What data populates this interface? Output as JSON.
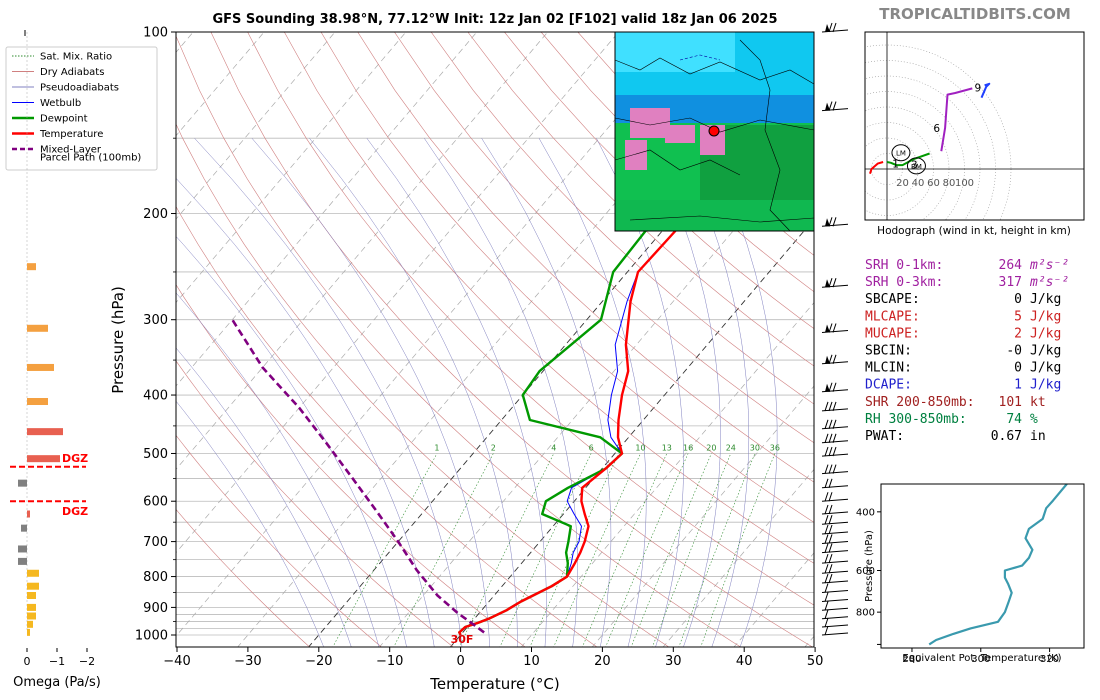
{
  "title": "GFS Sounding 38.98°N, 77.12°W Init: 12z Jan 02 [F102] valid 18z Jan 06 2025",
  "watermark": "TROPICALTIDBITS.COM",
  "skewt": {
    "xlabel": "Temperature (°C)",
    "ylabel": "Pressure (hPa)",
    "x_ticks": [
      -40,
      -30,
      -20,
      -10,
      0,
      10,
      20,
      30,
      40,
      50
    ],
    "y_ticks": [
      100,
      200,
      300,
      400,
      500,
      600,
      700,
      800,
      900,
      1000
    ],
    "freezing_label": "30F",
    "mixing_ratio_labels": [
      "1",
      "2",
      "4",
      "6",
      "8",
      "10",
      "13",
      "16",
      "20",
      "24",
      "30",
      "36"
    ]
  },
  "legend": [
    {
      "label": "Sat. Mix. Ratio",
      "color": "#2e8b2e",
      "style": "dotted"
    },
    {
      "label": "Dry Adiabats",
      "color": "#d08080",
      "style": "solid"
    },
    {
      "label": "Pseudoadiabats",
      "color": "#8080c0",
      "style": "solid"
    },
    {
      "label": "Wetbulb",
      "color": "#0000ff",
      "style": "solid"
    },
    {
      "label": "Dewpoint",
      "color": "#009900",
      "style": "solid"
    },
    {
      "label": "Temperature",
      "color": "#ff0000",
      "style": "solid"
    },
    {
      "label": "Mixed-Layer",
      "color": "#800080",
      "style": "dashed"
    },
    {
      "label": "Parcel Path (100mb)",
      "color": "#800080",
      "style": "none"
    }
  ],
  "omega": {
    "xlabel": "Omega (Pa/s)",
    "x_ticks": [
      "0",
      "−1",
      "−2"
    ],
    "dgz_label": "DGZ"
  },
  "hodograph": {
    "caption": "Hodograph (wind in kt, height in km)",
    "ring_labels": [
      "20",
      "40",
      "60",
      "80",
      "100"
    ],
    "height_labels": [
      "1",
      "3",
      "6",
      "9"
    ],
    "markers": [
      "LM",
      "RM"
    ]
  },
  "indices": [
    {
      "name": "SRH 0-1km:",
      "value": "264",
      "unit": "m²s⁻²",
      "color": "#a020a0"
    },
    {
      "name": "SRH 0-3km:",
      "value": "317",
      "unit": "m²s⁻²",
      "color": "#a020a0"
    },
    {
      "name": "SBCAPE:",
      "value": "0",
      "unit": "J/kg",
      "color": "#000000"
    },
    {
      "name": "MLCAPE:",
      "value": "5",
      "unit": "J/kg",
      "color": "#cc2020"
    },
    {
      "name": "MUCAPE:",
      "value": "2",
      "unit": "J/kg",
      "color": "#cc2020"
    },
    {
      "name": "SBCIN:",
      "value": "-0",
      "unit": "J/kg",
      "color": "#000000"
    },
    {
      "name": "MLCIN:",
      "value": "0",
      "unit": "J/kg",
      "color": "#000000"
    },
    {
      "name": "DCAPE:",
      "value": "1",
      "unit": "J/kg",
      "color": "#2020cc"
    },
    {
      "name": "SHR 200-850mb:",
      "value": "101",
      "unit": "kt",
      "color": "#a02020"
    },
    {
      "name": "RH 300-850mb:",
      "value": "74",
      "unit": "%",
      "color": "#008040"
    },
    {
      "name": "PWAT:",
      "value": "0.67",
      "unit": "in",
      "color": "#000000"
    }
  ],
  "theta_e": {
    "xlabel": "Equivalent Pot. Temperature (K)",
    "ylabel": "Pressure (hPa)",
    "x_ticks": [
      "280",
      "300",
      "320"
    ],
    "y_ticks": [
      "400",
      "600",
      "800"
    ]
  },
  "chart_data": {
    "type": "line",
    "title": "GFS Sounding 38.98°N, 77.12°W Init: 12z Jan 02 [F102] valid 18z Jan 06 2025",
    "xlabel": "Temperature (°C)",
    "ylabel": "Pressure (hPa)",
    "xlim": [
      -40,
      50
    ],
    "ylim": [
      1050,
      100
    ],
    "y_scale": "log",
    "grid": true,
    "legend_position": "top-left",
    "series": [
      {
        "name": "Temperature",
        "color": "#ff0000",
        "points": [
          [
            0,
            1000
          ],
          [
            -0.5,
            990
          ],
          [
            -0.3,
            970
          ],
          [
            1,
            955
          ],
          [
            2,
            940
          ],
          [
            3.5,
            910
          ],
          [
            4.5,
            880
          ],
          [
            7,
            830
          ],
          [
            8,
            800
          ],
          [
            7.5,
            760
          ],
          [
            7,
            730
          ],
          [
            6.3,
            700
          ],
          [
            5,
            660
          ],
          [
            3,
            630
          ],
          [
            1,
            600
          ],
          [
            -0.5,
            570
          ],
          [
            0.5,
            530
          ],
          [
            1,
            500
          ],
          [
            -1.5,
            470
          ],
          [
            -3.5,
            440
          ],
          [
            -6,
            400
          ],
          [
            -8,
            365
          ],
          [
            -11.5,
            330
          ],
          [
            -16,
            280
          ],
          [
            -18.5,
            250
          ],
          [
            -18,
            200
          ],
          [
            -10,
            150
          ],
          [
            0,
            120
          ],
          [
            5,
            100
          ]
        ]
      },
      {
        "name": "Dewpoint",
        "color": "#009900",
        "points": [
          [
            0,
            1000
          ],
          [
            -0.5,
            990
          ],
          [
            -0.3,
            970
          ],
          [
            1,
            955
          ],
          [
            2,
            940
          ],
          [
            3.5,
            910
          ],
          [
            4.5,
            880
          ],
          [
            7,
            830
          ],
          [
            8,
            800
          ],
          [
            6.5,
            760
          ],
          [
            5,
            730
          ],
          [
            4,
            700
          ],
          [
            2.5,
            660
          ],
          [
            -3,
            630
          ],
          [
            -4,
            600
          ],
          [
            -2.5,
            570
          ],
          [
            0.5,
            530
          ],
          [
            1,
            500
          ],
          [
            -4,
            470
          ],
          [
            -16,
            440
          ],
          [
            -20,
            400
          ],
          [
            -20.5,
            365
          ],
          [
            -18,
            300
          ],
          [
            -22,
            250
          ],
          [
            -22.5,
            200
          ],
          [
            -28,
            150
          ],
          [
            -22,
            120
          ],
          [
            -14,
            100
          ]
        ]
      },
      {
        "name": "Wetbulb",
        "color": "#0000ff",
        "points": [
          [
            0,
            1000
          ],
          [
            -0.5,
            990
          ],
          [
            -0.3,
            970
          ],
          [
            1,
            955
          ],
          [
            2,
            940
          ],
          [
            3.5,
            910
          ],
          [
            4.5,
            880
          ],
          [
            7,
            830
          ],
          [
            8,
            800
          ],
          [
            7,
            760
          ],
          [
            6,
            730
          ],
          [
            5.5,
            700
          ],
          [
            4,
            660
          ],
          [
            1.5,
            630
          ],
          [
            -1,
            600
          ],
          [
            -2,
            570
          ],
          [
            0.5,
            530
          ],
          [
            1,
            500
          ],
          [
            -2.5,
            470
          ],
          [
            -5,
            440
          ],
          [
            -7.5,
            400
          ],
          [
            -9.5,
            365
          ],
          [
            -13,
            330
          ],
          [
            -16.5,
            280
          ],
          [
            -18.5,
            250
          ],
          [
            -18,
            200
          ],
          [
            -10,
            150
          ],
          [
            0,
            120
          ],
          [
            5,
            100
          ]
        ]
      },
      {
        "name": "Mixed-Layer Parcel Path (100mb)",
        "color": "#800080",
        "points": [
          [
            3,
            990
          ],
          [
            0.5,
            960
          ],
          [
            -3,
            920
          ],
          [
            -8,
            860
          ],
          [
            -14,
            780
          ],
          [
            -20,
            700
          ],
          [
            -27,
            620
          ],
          [
            -34,
            550
          ],
          [
            -42,
            480
          ],
          [
            -50,
            420
          ],
          [
            -60,
            360
          ],
          [
            -70,
            300
          ]
        ]
      }
    ],
    "omega": {
      "xlim": [
        0.5,
        -2.0
      ],
      "bars": [
        {
          "p": 990,
          "w": -0.1
        },
        {
          "p": 960,
          "w": -0.2
        },
        {
          "p": 930,
          "w": -0.3
        },
        {
          "p": 900,
          "w": -0.3
        },
        {
          "p": 860,
          "w": -0.3
        },
        {
          "p": 830,
          "w": -0.4
        },
        {
          "p": 790,
          "w": -0.4
        },
        {
          "p": 755,
          "w": 0.3
        },
        {
          "p": 720,
          "w": 0.3
        },
        {
          "p": 665,
          "w": 0.2
        },
        {
          "p": 630,
          "w": -0.1
        },
        {
          "p": 560,
          "w": 0.3
        },
        {
          "p": 510,
          "w": -1.1
        },
        {
          "p": 460,
          "w": -1.2
        },
        {
          "p": 410,
          "w": -0.7
        },
        {
          "p": 360,
          "w": -0.9
        },
        {
          "p": 310,
          "w": -0.7
        },
        {
          "p": 245,
          "w": -0.3
        }
      ],
      "dgz_top": 522,
      "dgz_bottom": 600
    },
    "hodograph": {
      "points": [
        [
          -22,
          -6
        ],
        [
          -20,
          0
        ],
        [
          -12,
          7
        ],
        [
          -5,
          9
        ],
        [
          0,
          9
        ],
        [
          5,
          8
        ],
        [
          12,
          5
        ],
        [
          20,
          5
        ],
        [
          35,
          13
        ],
        [
          55,
          20
        ],
        [
          70,
          23
        ],
        [
          75,
          53
        ],
        [
          78,
          96
        ],
        [
          88,
          98
        ],
        [
          110,
          104
        ],
        [
          126,
          108
        ],
        [
          132,
          110
        ],
        [
          128,
          106
        ],
        [
          122,
          92
        ]
      ],
      "labels": [
        {
          "text": "1",
          "u": 12,
          "v": 7
        },
        {
          "text": "3",
          "u": 36,
          "v": 6
        },
        {
          "text": "6",
          "u": 65,
          "v": 53
        },
        {
          "text": "9",
          "u": 118,
          "v": 105
        }
      ],
      "lm": {
        "u": 18,
        "v": 21
      },
      "rm": {
        "u": 38,
        "v": 4
      }
    },
    "theta_e": {
      "points": [
        [
          285,
          1000
        ],
        [
          287,
          970
        ],
        [
          292,
          930
        ],
        [
          297,
          895
        ],
        [
          305,
          855
        ],
        [
          307,
          800
        ],
        [
          308,
          750
        ],
        [
          309,
          700
        ],
        [
          308,
          660
        ],
        [
          307,
          630
        ],
        [
          307,
          600
        ],
        [
          312,
          580
        ],
        [
          314,
          550
        ],
        [
          315,
          520
        ],
        [
          313,
          480
        ],
        [
          314,
          450
        ],
        [
          318,
          420
        ],
        [
          319,
          390
        ],
        [
          321,
          370
        ],
        [
          325,
          330
        ]
      ],
      "xlim": [
        271,
        330
      ],
      "ylim": [
        1025,
        330
      ]
    }
  }
}
